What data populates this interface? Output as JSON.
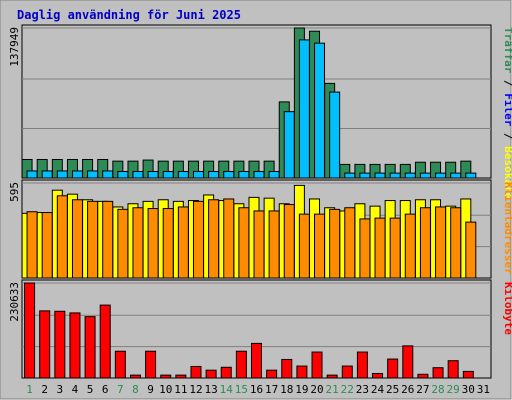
{
  "chart_data": {
    "type": "bar",
    "title": "Daglig användning för Juni 2025",
    "days": [
      "1",
      "2",
      "3",
      "4",
      "5",
      "6",
      "7",
      "8",
      "9",
      "10",
      "11",
      "12",
      "13",
      "14",
      "15",
      "16",
      "17",
      "18",
      "19",
      "20",
      "21",
      "22",
      "23",
      "24",
      "25",
      "26",
      "27",
      "28",
      "29",
      "30",
      "31"
    ],
    "weekend_days": [
      "1",
      "7",
      "8",
      "14",
      "15",
      "21",
      "22",
      "28",
      "29"
    ],
    "colors": {
      "background": "#c0c0c0",
      "frame": "#808080",
      "title": "#0000c8",
      "weekday_label": "#000000",
      "weekend_label": "#2e8b57",
      "traffar": "#2e8b57",
      "filer": "#00bfff",
      "besokare": "#ffff00",
      "klientadresser": "#ff8c00",
      "kilobyte": "#ff0000"
    },
    "panels": [
      {
        "ymax_label": "137949",
        "ymax": 137949,
        "legend": [
          {
            "label": "Träffar",
            "color": "#2e8b57"
          },
          {
            "label": " / ",
            "color": "#000000"
          },
          {
            "label": "Filer",
            "color": "#0000ff"
          },
          {
            "label": " / ",
            "color": "#000000"
          },
          {
            "label": "Besökare",
            "color": "#ffff00"
          }
        ],
        "series": [
          {
            "name": "Träffar",
            "color": "#2e8b57",
            "values": [
              17000,
              17000,
              17000,
              17000,
              17000,
              17000,
              15500,
              15500,
              16500,
              15500,
              15500,
              15500,
              15500,
              15500,
              15500,
              15500,
              15500,
              70000,
              137949,
              135000,
              87000,
              12500,
              12500,
              12500,
              12500,
              12500,
              14500,
              14500,
              14500,
              15500,
              0
            ]
          },
          {
            "name": "Filer",
            "color": "#00bfff",
            "values": [
              6500,
              6500,
              6500,
              6500,
              6500,
              6500,
              6000,
              6000,
              6000,
              6000,
              6000,
              6000,
              6000,
              6000,
              6000,
              6000,
              6000,
              61000,
              127000,
              124000,
              79000,
              4500,
              4500,
              4500,
              4500,
              4500,
              4500,
              4500,
              4500,
              4500,
              0
            ]
          }
        ]
      },
      {
        "ymax_label": "595",
        "ymax": 595,
        "legend": [
          {
            "label": "Klientadresser",
            "color": "#ff8c00"
          }
        ],
        "series": [
          {
            "name": "Besökare",
            "color": "#ffff00",
            "values": [
              405,
              410,
              550,
              525,
              490,
              480,
              445,
              465,
              480,
              490,
              480,
              485,
              520,
              485,
              465,
              505,
              500,
              465,
              580,
              495,
              440,
              420,
              465,
              450,
              485,
              485,
              490,
              490,
              450,
              495,
              0
            ]
          },
          {
            "name": "Klientadresser",
            "color": "#ff8c00",
            "values": [
              415,
              410,
              515,
              490,
              480,
              480,
              430,
              440,
              435,
              435,
              445,
              480,
              490,
              495,
              440,
              420,
              420,
              460,
              400,
              400,
              430,
              440,
              370,
              375,
              375,
              400,
              440,
              445,
              440,
              350,
              0
            ]
          }
        ]
      },
      {
        "ymax_label": "230633",
        "ymax": 230633,
        "legend": [
          {
            "label": "Kilobyte",
            "color": "#ff0000"
          }
        ],
        "series": [
          {
            "name": "Kilobyte",
            "color": "#ff0000",
            "values": [
              230633,
              163000,
              162000,
              158000,
              149000,
              177000,
              65000,
              7000,
              65000,
              7000,
              7000,
              28000,
              19000,
              26000,
              65000,
              84000,
              19000,
              45000,
              29000,
              63000,
              7000,
              29000,
              63000,
              11000,
              46000,
              78000,
              9000,
              25000,
              42000,
              16000,
              0
            ]
          }
        ]
      }
    ]
  }
}
